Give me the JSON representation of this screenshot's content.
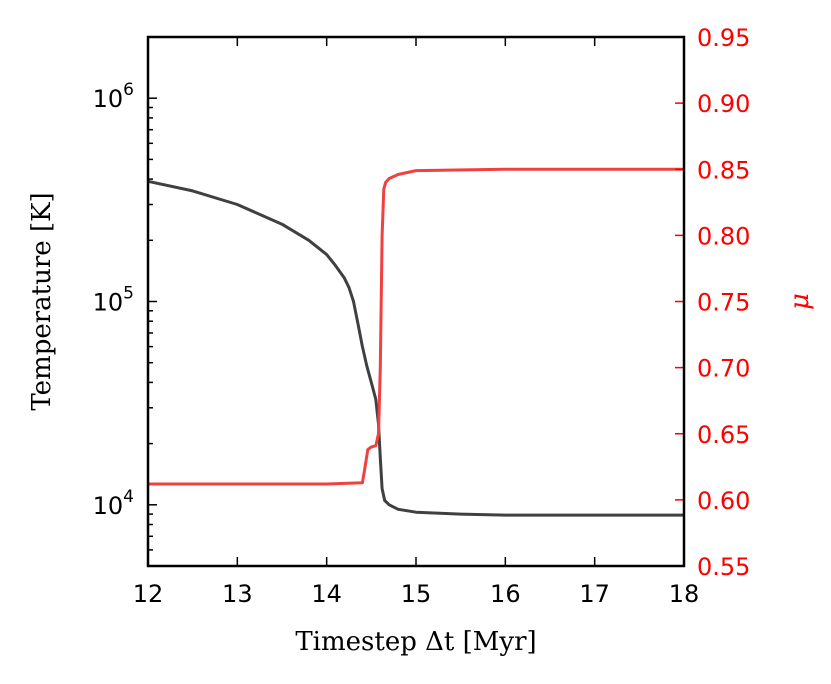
{
  "chart_data": {
    "type": "line",
    "xlabel": "Timestep Δt [Myr]",
    "ylabel": "Temperature [K]",
    "y2label": "μ",
    "xlim": [
      12,
      18
    ],
    "ylim": [
      5000,
      2000000
    ],
    "y2lim": [
      0.55,
      0.95
    ],
    "yscale": "log",
    "grid": false,
    "x_ticks": [
      12,
      13,
      14,
      15,
      16,
      17,
      18
    ],
    "x_tick_labels": [
      "12",
      "13",
      "14",
      "15",
      "16",
      "17",
      "18"
    ],
    "y_major_ticks": [
      10000,
      100000,
      1000000
    ],
    "y_tick_labels": [
      {
        "base": "10",
        "exp": "4"
      },
      {
        "base": "10",
        "exp": "5"
      },
      {
        "base": "10",
        "exp": "6"
      }
    ],
    "y2_ticks": [
      0.55,
      0.6,
      0.65,
      0.7,
      0.75,
      0.8,
      0.85,
      0.9,
      0.95
    ],
    "y2_tick_labels": [
      "0.55",
      "0.60",
      "0.65",
      "0.70",
      "0.75",
      "0.80",
      "0.85",
      "0.90",
      "0.95"
    ],
    "colors": {
      "temperature": "#404040",
      "mu": "#f04040",
      "right_axis": "#ff0000"
    },
    "series": [
      {
        "axis": "left",
        "x": [
          12.0,
          12.5,
          13.0,
          13.5,
          13.8,
          14.0,
          14.1,
          14.2,
          14.25,
          14.3,
          14.35,
          14.4,
          14.45,
          14.5,
          14.55,
          14.58,
          14.6,
          14.62,
          14.65,
          14.7,
          14.8,
          15.0,
          15.5,
          16.0,
          17.0,
          18.0
        ],
        "values": [
          390000,
          350000,
          300000,
          240000,
          200000,
          170000,
          150000,
          130000,
          117000,
          100000,
          78000,
          60000,
          48000,
          40000,
          33000,
          25000,
          17000,
          12000,
          10500,
          10000,
          9500,
          9200,
          9000,
          8900,
          8900,
          8900
        ]
      },
      {
        "axis": "right",
        "x": [
          12.0,
          13.0,
          14.0,
          14.4,
          14.43,
          14.46,
          14.5,
          14.55,
          14.58,
          14.6,
          14.62,
          14.64,
          14.66,
          14.7,
          14.8,
          15.0,
          16.0,
          17.0,
          18.0
        ],
        "values": [
          0.612,
          0.612,
          0.612,
          0.613,
          0.625,
          0.638,
          0.64,
          0.641,
          0.65,
          0.7,
          0.8,
          0.835,
          0.84,
          0.843,
          0.846,
          0.849,
          0.85,
          0.85,
          0.85
        ]
      }
    ]
  }
}
